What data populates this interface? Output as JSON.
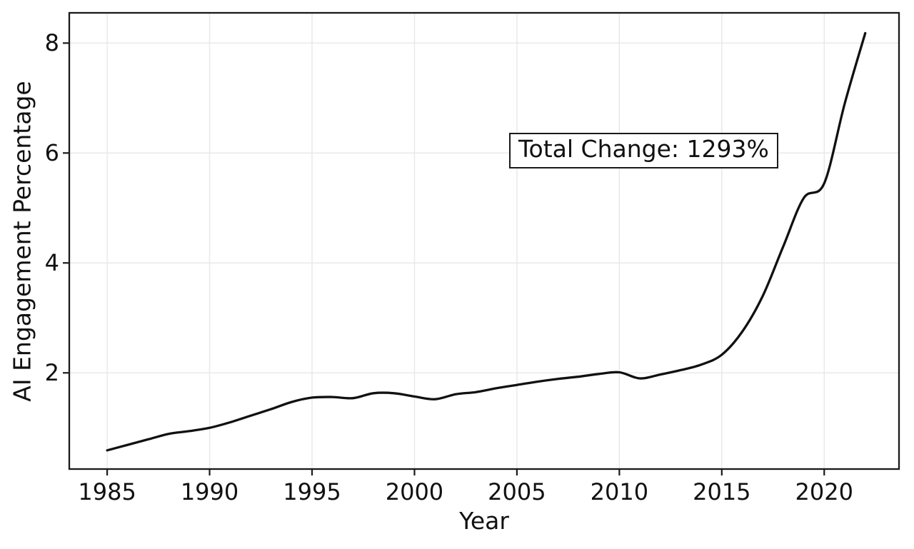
{
  "chart_data": {
    "type": "line",
    "title": "",
    "xlabel": "Year",
    "ylabel": "AI Engagement Percentage",
    "x": [
      1985,
      1986,
      1987,
      1988,
      1989,
      1990,
      1991,
      1992,
      1993,
      1994,
      1995,
      1996,
      1997,
      1998,
      1999,
      2000,
      2001,
      2002,
      2003,
      2004,
      2005,
      2006,
      2007,
      2008,
      2009,
      2010,
      2011,
      2012,
      2013,
      2014,
      2015,
      2016,
      2017,
      2018,
      2019,
      2020,
      2021,
      2022
    ],
    "values": [
      0.59,
      0.69,
      0.79,
      0.89,
      0.94,
      1.0,
      1.1,
      1.22,
      1.34,
      1.47,
      1.55,
      1.56,
      1.54,
      1.63,
      1.63,
      1.57,
      1.52,
      1.61,
      1.65,
      1.72,
      1.78,
      1.84,
      1.89,
      1.93,
      1.98,
      2.01,
      1.9,
      1.97,
      2.05,
      2.15,
      2.33,
      2.75,
      3.4,
      4.3,
      5.18,
      5.45,
      6.9,
      8.18
    ],
    "x_ticks": [
      "1985",
      "1990",
      "1995",
      "2000",
      "2005",
      "2010",
      "2015",
      "2020"
    ],
    "x_tick_values": [
      1985,
      1990,
      1995,
      2000,
      2005,
      2010,
      2015,
      2020
    ],
    "y_ticks": [
      "2",
      "4",
      "6",
      "8"
    ],
    "y_tick_values": [
      2,
      4,
      6,
      8
    ],
    "xlim": [
      1983.15,
      2023.65
    ],
    "ylim": [
      0.25,
      8.55
    ],
    "grid": true,
    "legend_position": "none",
    "annotation": {
      "text": "Total Change: 1293%"
    },
    "colors": {
      "line": "#111111",
      "grid": "#e8e8e8",
      "spine": "#1a1a1a",
      "text": "#111111",
      "background": "#ffffff"
    }
  }
}
